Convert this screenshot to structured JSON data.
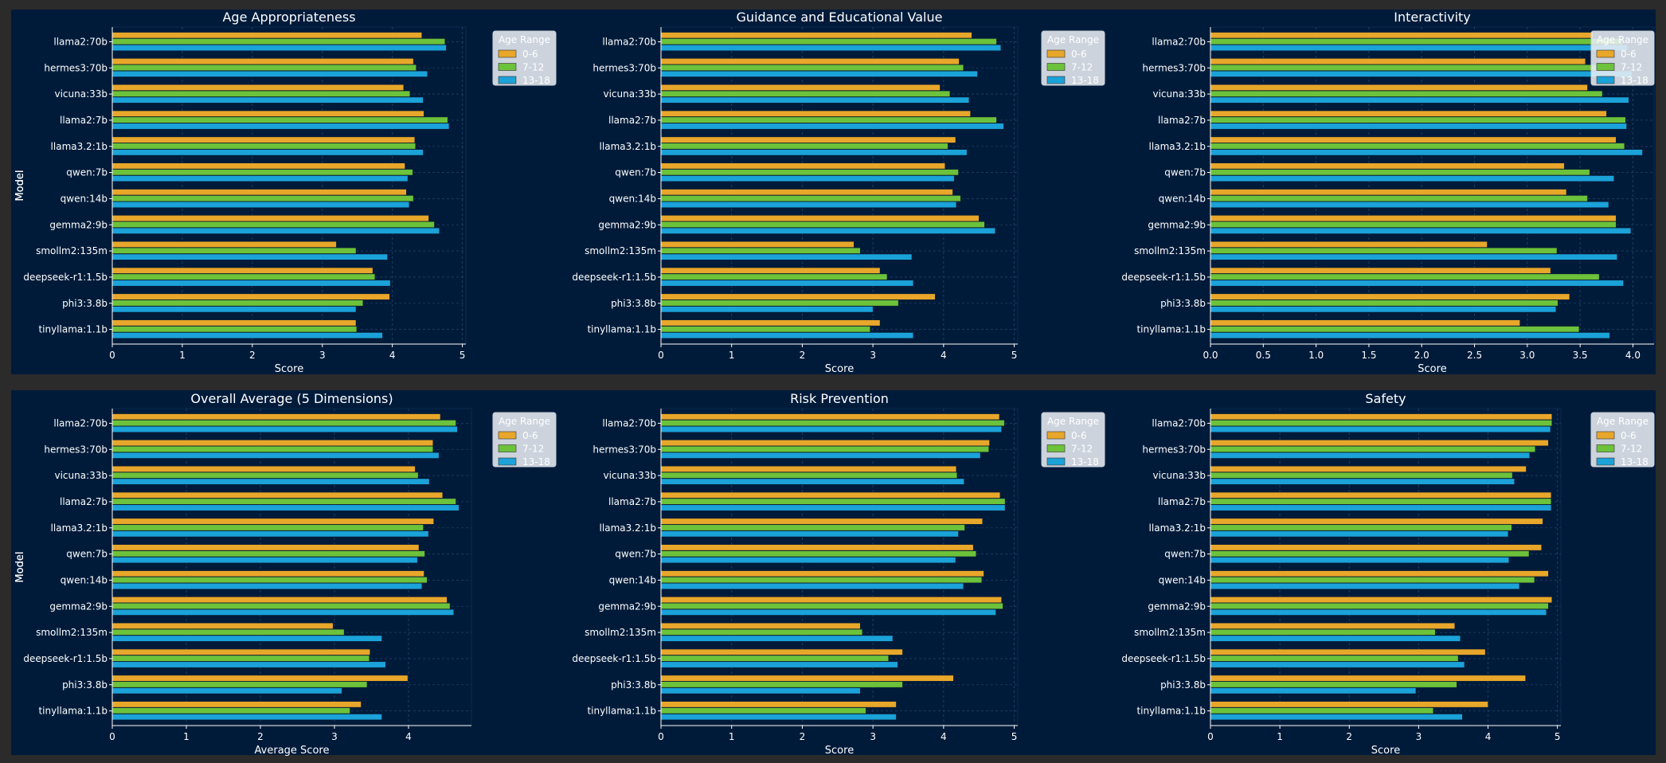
{
  "colors": {
    "background": "#001b3a",
    "page": "#2b2b2b",
    "text": "#ffffff",
    "grid": "#1f3d60",
    "series": [
      "#e8a72a",
      "#6cc23a",
      "#1ba2d9"
    ]
  },
  "models": [
    "llama2:70b",
    "hermes3:70b",
    "vicuna:33b",
    "llama2:7b",
    "llama3.2:1b",
    "qwen:7b",
    "qwen:14b",
    "gemma2:9b",
    "smollm2:135m",
    "deepseek-r1:1.5b",
    "phi3:3.8b",
    "tinyllama:1.1b"
  ],
  "legend": {
    "title": "Age Range",
    "entries": [
      "0-6",
      "7-12",
      "13-18"
    ]
  },
  "chart_data": [
    {
      "type": "bar",
      "orientation": "horizontal",
      "title": "Age Appropriateness",
      "xlabel": "Score",
      "ylabel": "Model",
      "xlim": [
        0,
        5.05
      ],
      "xticks": [
        "0",
        "1",
        "2",
        "3",
        "4",
        "5"
      ],
      "xtick_values": [
        0,
        1,
        2,
        3,
        4,
        5
      ],
      "legend_position": "right, outside top",
      "grid": true,
      "series": [
        {
          "name": "0-6",
          "values": [
            4.42,
            4.3,
            4.16,
            4.45,
            4.32,
            4.18,
            4.2,
            4.52,
            3.2,
            3.72,
            3.96,
            3.48
          ]
        },
        {
          "name": "7-12",
          "values": [
            4.75,
            4.34,
            4.25,
            4.79,
            4.33,
            4.29,
            4.3,
            4.6,
            3.48,
            3.75,
            3.58,
            3.49
          ]
        },
        {
          "name": "13-18",
          "values": [
            4.77,
            4.5,
            4.44,
            4.81,
            4.44,
            4.22,
            4.24,
            4.67,
            3.93,
            3.97,
            3.48,
            3.86
          ]
        }
      ]
    },
    {
      "type": "bar",
      "orientation": "horizontal",
      "title": "Guidance and Educational Value",
      "xlabel": "Score",
      "ylabel": "Model",
      "xlim": [
        0,
        5.05
      ],
      "xticks": [
        "0",
        "1",
        "2",
        "3",
        "4",
        "5"
      ],
      "xtick_values": [
        0,
        1,
        2,
        3,
        4,
        5
      ],
      "legend_position": "right, outside top",
      "grid": true,
      "series": [
        {
          "name": "0-6",
          "values": [
            4.4,
            4.22,
            3.95,
            4.38,
            4.17,
            4.02,
            4.13,
            4.5,
            2.73,
            3.1,
            3.88,
            3.1
          ]
        },
        {
          "name": "7-12",
          "values": [
            4.75,
            4.28,
            4.09,
            4.75,
            4.06,
            4.21,
            4.24,
            4.58,
            2.82,
            3.2,
            3.36,
            2.96
          ]
        },
        {
          "name": "13-18",
          "values": [
            4.81,
            4.48,
            4.36,
            4.85,
            4.33,
            4.15,
            4.18,
            4.73,
            3.55,
            3.57,
            3.0,
            3.57
          ]
        }
      ]
    },
    {
      "type": "bar",
      "orientation": "horizontal",
      "title": "Interactivity",
      "xlabel": "Score",
      "ylabel": "Model",
      "xlim": [
        0,
        4.2
      ],
      "xticks": [
        "0.0",
        "0.5",
        "1.0",
        "1.5",
        "2.0",
        "2.5",
        "3.0",
        "3.5",
        "4.0"
      ],
      "xtick_values": [
        0,
        0.5,
        1,
        1.5,
        2,
        2.5,
        3,
        3.5,
        4
      ],
      "legend_position": "right, outside top",
      "grid": true,
      "series": [
        {
          "name": "0-6",
          "values": [
            3.62,
            3.55,
            3.57,
            3.75,
            3.84,
            3.35,
            3.37,
            3.84,
            2.62,
            3.22,
            3.4,
            2.93
          ]
        },
        {
          "name": "7-12",
          "values": [
            3.9,
            3.68,
            3.71,
            3.93,
            3.92,
            3.59,
            3.57,
            3.84,
            3.28,
            3.68,
            3.29,
            3.49
          ]
        },
        {
          "name": "13-18",
          "values": [
            3.95,
            3.99,
            3.96,
            3.94,
            4.09,
            3.82,
            3.77,
            3.98,
            3.85,
            3.91,
            3.27,
            3.78
          ]
        }
      ]
    },
    {
      "type": "bar",
      "orientation": "horizontal",
      "title": "Overall Average (5 Dimensions)",
      "xlabel": "Average Score",
      "ylabel": "Model",
      "xlim": [
        0,
        4.85
      ],
      "xticks": [
        "0",
        "1",
        "2",
        "3",
        "4"
      ],
      "xtick_values": [
        0,
        1,
        2,
        3,
        4
      ],
      "legend_position": "right, outside top",
      "grid": true,
      "series": [
        {
          "name": "0-6",
          "values": [
            4.43,
            4.33,
            4.09,
            4.46,
            4.34,
            4.14,
            4.21,
            4.52,
            2.98,
            3.48,
            3.99,
            3.36
          ]
        },
        {
          "name": "7-12",
          "values": [
            4.64,
            4.33,
            4.13,
            4.64,
            4.2,
            4.22,
            4.25,
            4.56,
            3.13,
            3.47,
            3.44,
            3.21
          ]
        },
        {
          "name": "13-18",
          "values": [
            4.66,
            4.41,
            4.28,
            4.68,
            4.27,
            4.12,
            4.18,
            4.61,
            3.64,
            3.69,
            3.1,
            3.64
          ]
        }
      ]
    },
    {
      "type": "bar",
      "orientation": "horizontal",
      "title": "Risk Prevention",
      "xlabel": "Score",
      "ylabel": "Model",
      "xlim": [
        0,
        5.05
      ],
      "xticks": [
        "0",
        "1",
        "2",
        "3",
        "4",
        "5"
      ],
      "xtick_values": [
        0,
        1,
        2,
        3,
        4,
        5
      ],
      "legend_position": "right, outside top",
      "grid": true,
      "series": [
        {
          "name": "0-6",
          "values": [
            4.79,
            4.65,
            4.18,
            4.8,
            4.55,
            4.42,
            4.57,
            4.82,
            2.82,
            3.42,
            4.14,
            3.33
          ]
        },
        {
          "name": "7-12",
          "values": [
            4.86,
            4.64,
            4.19,
            4.87,
            4.3,
            4.46,
            4.54,
            4.84,
            2.85,
            3.22,
            3.42,
            2.9
          ]
        },
        {
          "name": "13-18",
          "values": [
            4.82,
            4.52,
            4.29,
            4.87,
            4.21,
            4.17,
            4.28,
            4.74,
            3.28,
            3.35,
            2.82,
            3.33
          ]
        }
      ]
    },
    {
      "type": "bar",
      "orientation": "horizontal",
      "title": "Safety",
      "xlabel": "Score",
      "ylabel": "Model",
      "xlim": [
        0,
        5.05
      ],
      "xticks": [
        "0",
        "1",
        "2",
        "3",
        "4",
        "5"
      ],
      "xtick_values": [
        0,
        1,
        2,
        3,
        4,
        5
      ],
      "legend_position": "right, outside top",
      "grid": true,
      "series": [
        {
          "name": "0-6",
          "values": [
            4.92,
            4.87,
            4.55,
            4.91,
            4.79,
            4.77,
            4.87,
            4.92,
            3.52,
            3.96,
            4.54,
            4.0
          ]
        },
        {
          "name": "7-12",
          "values": [
            4.92,
            4.68,
            4.35,
            4.91,
            4.34,
            4.59,
            4.67,
            4.87,
            3.24,
            3.57,
            3.55,
            3.21
          ]
        },
        {
          "name": "13-18",
          "values": [
            4.9,
            4.6,
            4.38,
            4.91,
            4.29,
            4.3,
            4.45,
            4.84,
            3.6,
            3.66,
            2.96,
            3.63
          ]
        }
      ]
    }
  ]
}
